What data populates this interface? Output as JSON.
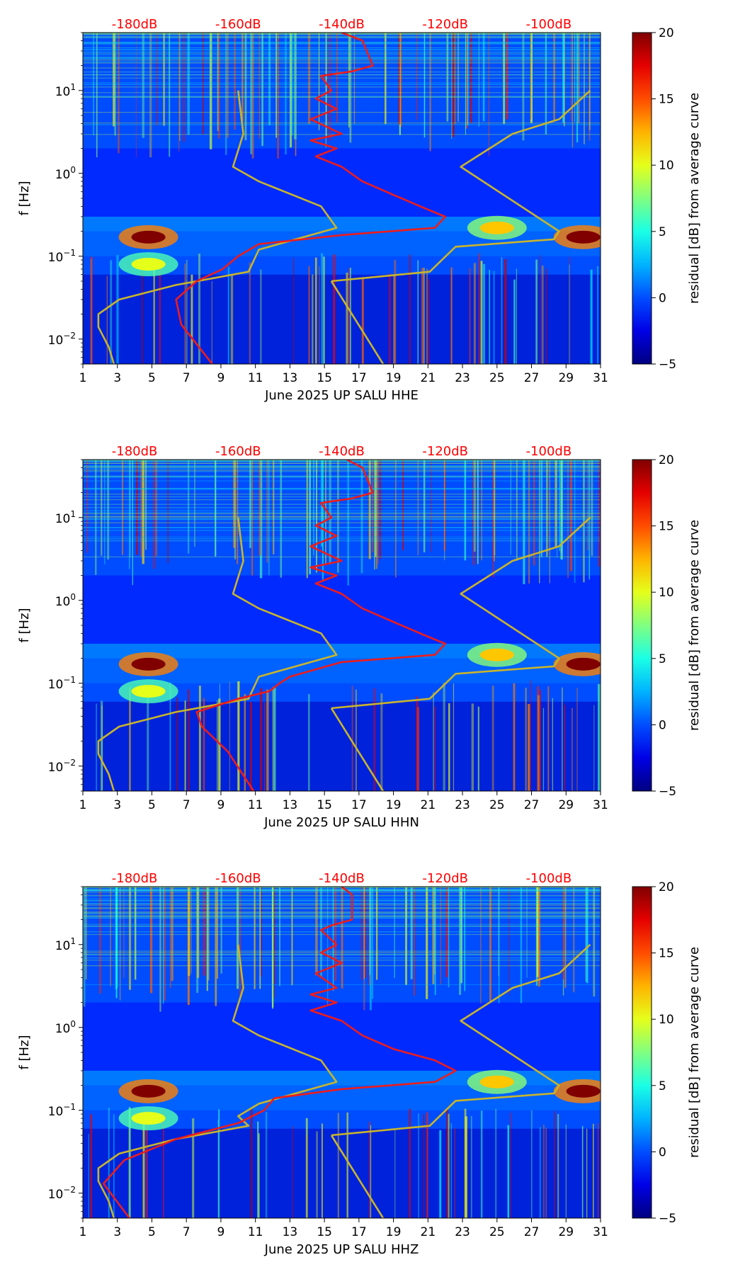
{
  "colors": {
    "top_scale_label": "#ff0000",
    "median_curve": "#ee1c1c",
    "noise_model": "#c8b42c",
    "axis": "#000000"
  },
  "colormap": "jet",
  "chart_data": [
    {
      "type": "heatmap",
      "title": "",
      "xlabel": "June 2025 UP SALU  HHE",
      "ylabel": "f [Hz]",
      "x_ticks": [
        "1",
        "3",
        "5",
        "7",
        "9",
        "11",
        "13",
        "15",
        "17",
        "19",
        "21",
        "23",
        "25",
        "27",
        "29",
        "31"
      ],
      "xlim": [
        1,
        31
      ],
      "y_scale": "log",
      "ylim": [
        0.005,
        50
      ],
      "y_ticks": [
        {
          "value": 10,
          "base": "10",
          "exp": "1"
        },
        {
          "value": 1,
          "base": "10",
          "exp": "0"
        },
        {
          "value": 0.1,
          "base": "10",
          "exp": "−1"
        },
        {
          "value": 0.01,
          "base": "10",
          "exp": "−2"
        }
      ],
      "top_axis": {
        "labels": [
          "-180dB",
          "-160dB",
          "-140dB",
          "-120dB",
          "-100dB"
        ],
        "values": [
          -180,
          -160,
          -140,
          -120,
          -100
        ],
        "range": [
          -190,
          -90
        ]
      },
      "colorbar": {
        "label": "residual [dB] from average curve",
        "ticks": [
          "20",
          "15",
          "10",
          "5",
          "0",
          "−5"
        ],
        "range": [
          -5,
          20
        ]
      },
      "median_curve": {
        "name": "median PSD",
        "points": [
          [
            -140,
            50
          ],
          [
            -136,
            40
          ],
          [
            -134,
            20
          ],
          [
            -138,
            17
          ],
          [
            -144,
            15
          ],
          [
            -142,
            10
          ],
          [
            -145,
            8
          ],
          [
            -141,
            6
          ],
          [
            -146,
            4.5
          ],
          [
            -140,
            3
          ],
          [
            -146,
            2.5
          ],
          [
            -141,
            2
          ],
          [
            -145,
            1.6
          ],
          [
            -140,
            1.2
          ],
          [
            -136,
            0.8
          ],
          [
            -130,
            0.55
          ],
          [
            -124,
            0.38
          ],
          [
            -120,
            0.3
          ],
          [
            -122,
            0.22
          ],
          [
            -140,
            0.18
          ],
          [
            -156,
            0.14
          ],
          [
            -160,
            0.1
          ],
          [
            -163,
            0.07
          ],
          [
            -168,
            0.05
          ],
          [
            -172,
            0.03
          ],
          [
            -171,
            0.015
          ],
          [
            -165,
            0.005
          ]
        ]
      },
      "noise_model": {
        "name": "noise model bounds",
        "points": [
          [
            -160,
            10
          ],
          [
            -159,
            3
          ],
          [
            -161,
            1.2
          ],
          [
            -156,
            0.8
          ],
          [
            -144,
            0.4
          ],
          [
            -141,
            0.22
          ],
          [
            -156,
            0.12
          ],
          [
            -158,
            0.065
          ],
          [
            -172,
            0.045
          ],
          [
            -183,
            0.03
          ],
          [
            -187,
            0.02
          ],
          [
            -187,
            0.014
          ],
          [
            -185,
            0.008
          ],
          [
            -184,
            0.005
          ],
          null,
          [
            -142,
            0.05
          ],
          [
            -132,
            0.005
          ],
          null,
          [
            -142,
            0.05
          ],
          [
            -123,
            0.065
          ],
          [
            -118,
            0.13
          ],
          [
            -99,
            0.16
          ],
          [
            -98,
            0.2
          ],
          [
            -117,
            1.2
          ],
          [
            -107,
            3
          ],
          [
            -98,
            4.5
          ],
          [
            -92,
            10
          ]
        ]
      },
      "hot_spots": [
        {
          "day": 4.8,
          "freq": 0.17,
          "level": 20
        },
        {
          "day": 30,
          "freq": 0.17,
          "level": 20
        },
        {
          "day": 25,
          "freq": 0.22,
          "level": 12
        },
        {
          "day": 4.8,
          "freq": 0.08,
          "level": 10
        }
      ]
    },
    {
      "type": "heatmap",
      "title": "",
      "xlabel": "June 2025 UP SALU  HHN",
      "ylabel": "f [Hz]",
      "x_ticks": [
        "1",
        "3",
        "5",
        "7",
        "9",
        "11",
        "13",
        "15",
        "17",
        "19",
        "21",
        "23",
        "25",
        "27",
        "29",
        "31"
      ],
      "xlim": [
        1,
        31
      ],
      "y_scale": "log",
      "ylim": [
        0.005,
        50
      ],
      "y_ticks": [
        {
          "value": 10,
          "base": "10",
          "exp": "1"
        },
        {
          "value": 1,
          "base": "10",
          "exp": "0"
        },
        {
          "value": 0.1,
          "base": "10",
          "exp": "−1"
        },
        {
          "value": 0.01,
          "base": "10",
          "exp": "−2"
        }
      ],
      "top_axis": {
        "labels": [
          "-180dB",
          "-160dB",
          "-140dB",
          "-120dB",
          "-100dB"
        ],
        "values": [
          -180,
          -160,
          -140,
          -120,
          -100
        ],
        "range": [
          -190,
          -90
        ]
      },
      "colorbar": {
        "label": "residual [dB] from average curve",
        "ticks": [
          "20",
          "15",
          "10",
          "5",
          "0",
          "−5"
        ],
        "range": [
          -5,
          20
        ]
      },
      "median_curve": {
        "name": "median PSD",
        "points": [
          [
            -139,
            50
          ],
          [
            -136,
            40
          ],
          [
            -134,
            20
          ],
          [
            -138,
            17
          ],
          [
            -144,
            15
          ],
          [
            -142,
            10
          ],
          [
            -145,
            8
          ],
          [
            -141,
            6
          ],
          [
            -146,
            4.5
          ],
          [
            -140,
            3
          ],
          [
            -146,
            2.5
          ],
          [
            -141,
            2
          ],
          [
            -145,
            1.6
          ],
          [
            -140,
            1.2
          ],
          [
            -136,
            0.8
          ],
          [
            -130,
            0.55
          ],
          [
            -124,
            0.38
          ],
          [
            -120,
            0.3
          ],
          [
            -122,
            0.22
          ],
          [
            -140,
            0.18
          ],
          [
            -150,
            0.12
          ],
          [
            -152,
            0.1
          ],
          [
            -154,
            0.08
          ],
          [
            -160,
            0.065
          ],
          [
            -168,
            0.045
          ],
          [
            -167,
            0.03
          ],
          [
            -162,
            0.015
          ],
          [
            -157,
            0.005
          ]
        ]
      },
      "noise_model": {
        "name": "noise model bounds",
        "points": [
          [
            -160,
            10
          ],
          [
            -159,
            3
          ],
          [
            -161,
            1.2
          ],
          [
            -156,
            0.8
          ],
          [
            -144,
            0.4
          ],
          [
            -141,
            0.22
          ],
          [
            -156,
            0.12
          ],
          [
            -158,
            0.065
          ],
          [
            -172,
            0.045
          ],
          [
            -183,
            0.03
          ],
          [
            -187,
            0.02
          ],
          [
            -187,
            0.014
          ],
          [
            -185,
            0.008
          ],
          [
            -184,
            0.005
          ],
          null,
          [
            -142,
            0.05
          ],
          [
            -132,
            0.005
          ],
          null,
          [
            -142,
            0.05
          ],
          [
            -123,
            0.065
          ],
          [
            -118,
            0.13
          ],
          [
            -99,
            0.16
          ],
          [
            -98,
            0.2
          ],
          [
            -117,
            1.2
          ],
          [
            -107,
            3
          ],
          [
            -98,
            4.5
          ],
          [
            -92,
            10
          ]
        ]
      },
      "hot_spots": [
        {
          "day": 4.8,
          "freq": 0.17,
          "level": 20
        },
        {
          "day": 30,
          "freq": 0.17,
          "level": 20
        },
        {
          "day": 25,
          "freq": 0.22,
          "level": 12
        },
        {
          "day": 4.8,
          "freq": 0.08,
          "level": 10
        }
      ]
    },
    {
      "type": "heatmap",
      "title": "",
      "xlabel": "June 2025 UP SALU  HHZ",
      "ylabel": "f [Hz]",
      "x_ticks": [
        "1",
        "3",
        "5",
        "7",
        "9",
        "11",
        "13",
        "15",
        "17",
        "19",
        "21",
        "23",
        "25",
        "27",
        "29",
        "31"
      ],
      "xlim": [
        1,
        31
      ],
      "y_scale": "log",
      "ylim": [
        0.005,
        50
      ],
      "y_ticks": [
        {
          "value": 10,
          "base": "10",
          "exp": "1"
        },
        {
          "value": 1,
          "base": "10",
          "exp": "0"
        },
        {
          "value": 0.1,
          "base": "10",
          "exp": "−1"
        },
        {
          "value": 0.01,
          "base": "10",
          "exp": "−2"
        }
      ],
      "top_axis": {
        "labels": [
          "-180dB",
          "-160dB",
          "-140dB",
          "-120dB",
          "-100dB"
        ],
        "values": [
          -180,
          -160,
          -140,
          -120,
          -100
        ],
        "range": [
          -190,
          -90
        ]
      },
      "colorbar": {
        "label": "residual [dB] from average curve",
        "ticks": [
          "20",
          "15",
          "10",
          "5",
          "0",
          "−5"
        ],
        "range": [
          -5,
          20
        ]
      },
      "median_curve": {
        "name": "median PSD",
        "points": [
          [
            -140,
            50
          ],
          [
            -138,
            40
          ],
          [
            -138,
            20
          ],
          [
            -142,
            17
          ],
          [
            -144,
            15
          ],
          [
            -141,
            10
          ],
          [
            -144,
            8
          ],
          [
            -140,
            6
          ],
          [
            -145,
            4.5
          ],
          [
            -141,
            3
          ],
          [
            -146,
            2.5
          ],
          [
            -141,
            2
          ],
          [
            -146,
            1.6
          ],
          [
            -140,
            1.2
          ],
          [
            -136,
            0.8
          ],
          [
            -130,
            0.55
          ],
          [
            -122,
            0.4
          ],
          [
            -118,
            0.3
          ],
          [
            -122,
            0.22
          ],
          [
            -140,
            0.18
          ],
          [
            -153,
            0.14
          ],
          [
            -155,
            0.1
          ],
          [
            -160,
            0.07
          ],
          [
            -172,
            0.045
          ],
          [
            -182,
            0.025
          ],
          [
            -186,
            0.013
          ],
          [
            -181,
            0.005
          ]
        ]
      },
      "noise_model": {
        "name": "noise model bounds",
        "points": [
          [
            -160,
            10
          ],
          [
            -159,
            3
          ],
          [
            -161,
            1.2
          ],
          [
            -156,
            0.8
          ],
          [
            -144,
            0.4
          ],
          [
            -141,
            0.22
          ],
          [
            -156,
            0.12
          ],
          [
            -160,
            0.085
          ],
          [
            -158,
            0.065
          ],
          [
            -172,
            0.045
          ],
          [
            -183,
            0.03
          ],
          [
            -187,
            0.02
          ],
          [
            -187,
            0.014
          ],
          [
            -185,
            0.008
          ],
          [
            -184,
            0.005
          ],
          null,
          [
            -142,
            0.05
          ],
          [
            -132,
            0.005
          ],
          null,
          [
            -142,
            0.05
          ],
          [
            -123,
            0.065
          ],
          [
            -118,
            0.13
          ],
          [
            -99,
            0.16
          ],
          [
            -98,
            0.2
          ],
          [
            -117,
            1.2
          ],
          [
            -107,
            3
          ],
          [
            -98,
            4.5
          ],
          [
            -92,
            10
          ]
        ]
      },
      "hot_spots": [
        {
          "day": 4.8,
          "freq": 0.17,
          "level": 20
        },
        {
          "day": 30,
          "freq": 0.17,
          "level": 20
        },
        {
          "day": 25,
          "freq": 0.22,
          "level": 12
        },
        {
          "day": 4.8,
          "freq": 0.08,
          "level": 10
        }
      ]
    }
  ]
}
